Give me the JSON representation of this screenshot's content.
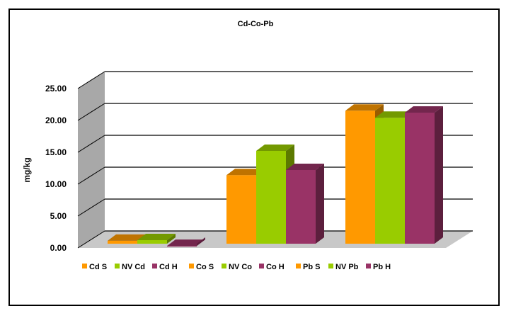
{
  "chart_data": {
    "type": "bar",
    "title": "Cd-Co-Pb",
    "xlabel": "",
    "ylabel": "mg/kg",
    "ylim": [
      0,
      25
    ],
    "yticks": [
      "0.00",
      "5.00",
      "10.00",
      "15.00",
      "20.00",
      "25.00"
    ],
    "grid": true,
    "legend_position": "bottom",
    "series": [
      {
        "name": "Cd S",
        "color": "#ff9900",
        "group": 0,
        "value": 0.9
      },
      {
        "name": "NV Cd",
        "color": "#99cc00",
        "group": 0,
        "value": 1.0
      },
      {
        "name": "Cd H",
        "color": "#993366",
        "group": 0,
        "value": 0.1
      },
      {
        "name": "Co S",
        "color": "#ff9900",
        "group": 1,
        "value": 11.2
      },
      {
        "name": "NV Co",
        "color": "#99cc00",
        "group": 1,
        "value": 15.0
      },
      {
        "name": "Co H",
        "color": "#993366",
        "group": 1,
        "value": 12.0
      },
      {
        "name": "Pb S",
        "color": "#ff9900",
        "group": 2,
        "value": 21.3
      },
      {
        "name": "NV Pb",
        "color": "#99cc00",
        "group": 2,
        "value": 20.2
      },
      {
        "name": "Pb H",
        "color": "#993366",
        "group": 2,
        "value": 21.0
      }
    ]
  }
}
